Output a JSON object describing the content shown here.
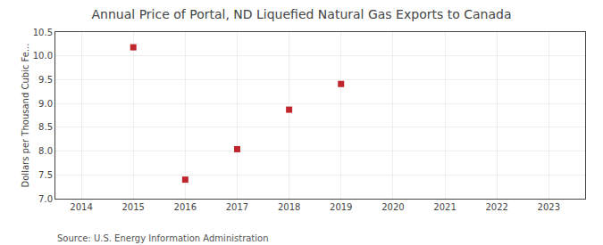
{
  "chart_data": {
    "type": "scatter",
    "title": "Annual Price of Portal, ND Liquefied Natural Gas Exports to Canada",
    "y_label": "Dollars per Thousand Cubic Fe...",
    "source": "Source: U.S. Energy Information Administration",
    "x": [
      2015,
      2016,
      2017,
      2018,
      2019
    ],
    "values": [
      10.18,
      7.4,
      8.04,
      8.87,
      9.41
    ],
    "color": "#C0272D",
    "marker": "square",
    "xlim": [
      2013.5,
      2023.7
    ],
    "ylim": [
      7.0,
      10.5
    ],
    "xticks": [
      2014,
      2015,
      2016,
      2017,
      2018,
      2019,
      2020,
      2021,
      2022,
      2023
    ],
    "yticks": [
      {
        "value": 7.0,
        "label": "7.0"
      },
      7.5,
      {
        "value": 8.0,
        "label": "8.0"
      },
      8.5,
      {
        "value": 9.0,
        "label": "9.0"
      },
      9.5,
      {
        "value": 10.0,
        "label": "10.0"
      },
      10.5
    ],
    "grid": true
  }
}
